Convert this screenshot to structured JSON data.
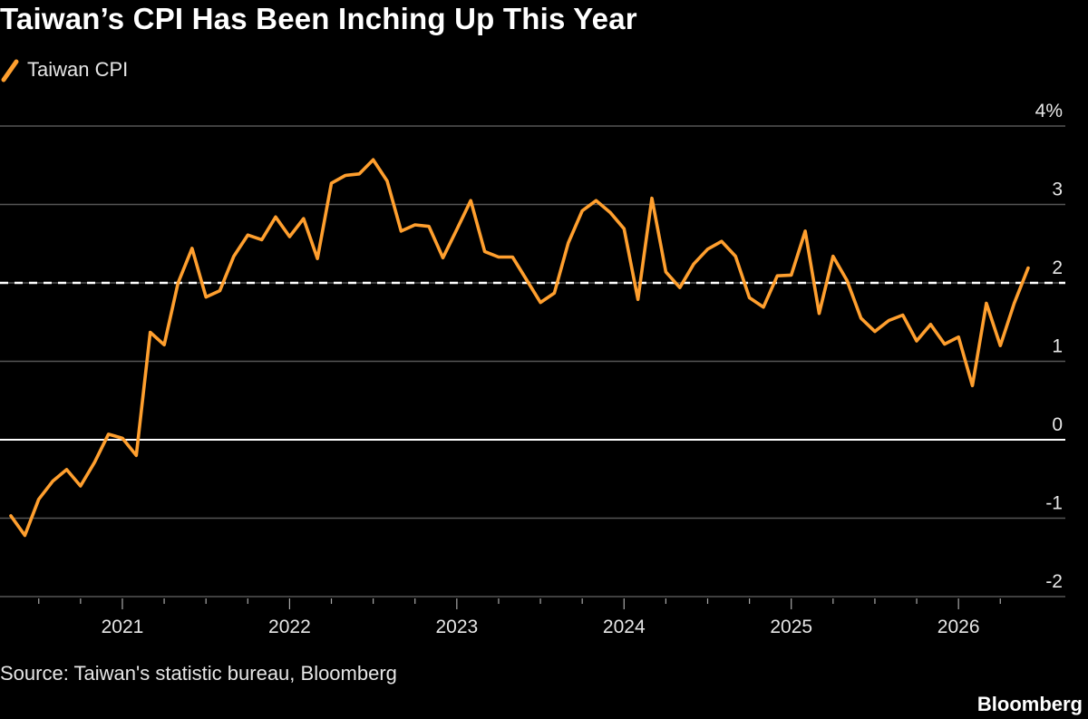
{
  "title": "Taiwan’s CPI Has Been Inching Up This Year",
  "source": "Source: Taiwan's statistic bureau, Bloomberg",
  "brand": "Bloomberg",
  "colors": {
    "background": "#000000",
    "series": "#ff9f2e",
    "grid": "#555555",
    "zero_line": "#ffffff",
    "reference_line": "#ffffff"
  },
  "chart_data": {
    "type": "line",
    "title": "Taiwan’s CPI Has Been Inching Up This Year",
    "xlabel": "",
    "ylabel": "",
    "y_unit": "%",
    "ylim": [
      -2,
      4
    ],
    "yticks": [
      -2,
      -1,
      0,
      1,
      2,
      3,
      4
    ],
    "ytick_labels": [
      "-2",
      "-1",
      "0",
      "1",
      "2",
      "3",
      "4%"
    ],
    "xticks": [
      "2021",
      "2022",
      "2023",
      "2024",
      "2025",
      "2026"
    ],
    "x_range": [
      "2020-05",
      "2026-06"
    ],
    "reference_line": {
      "y": 2,
      "style": "dashed"
    },
    "grid": true,
    "legend": {
      "position": "top-left",
      "entries": [
        "Taiwan CPI"
      ]
    },
    "series": [
      {
        "name": "Taiwan CPI",
        "x": [
          "2020-05",
          "2020-06",
          "2020-07",
          "2020-08",
          "2020-09",
          "2020-10",
          "2020-11",
          "2020-12",
          "2021-01",
          "2021-02",
          "2021-03",
          "2021-04",
          "2021-05",
          "2021-06",
          "2021-07",
          "2021-08",
          "2021-09",
          "2021-10",
          "2021-11",
          "2021-12",
          "2022-01",
          "2022-02",
          "2022-03",
          "2022-04",
          "2022-05",
          "2022-06",
          "2022-07",
          "2022-08",
          "2022-09",
          "2022-10",
          "2022-11",
          "2022-12",
          "2023-01",
          "2023-02",
          "2023-03",
          "2023-04",
          "2023-05",
          "2023-06",
          "2023-07",
          "2023-08",
          "2023-09",
          "2023-10",
          "2023-11",
          "2023-12",
          "2024-01",
          "2024-02",
          "2024-03",
          "2024-04",
          "2024-05",
          "2024-06",
          "2024-07",
          "2024-08",
          "2024-09",
          "2024-10",
          "2024-11",
          "2024-12",
          "2025-01",
          "2025-02",
          "2025-03",
          "2025-04",
          "2025-05",
          "2025-06",
          "2025-07",
          "2025-08",
          "2025-09",
          "2025-10",
          "2025-11",
          "2025-12",
          "2026-01",
          "2026-02",
          "2026-03",
          "2026-04",
          "2026-05",
          "2026-06"
        ],
        "y": [
          -0.97,
          -1.22,
          -0.76,
          -0.53,
          -0.38,
          -0.59,
          -0.29,
          0.07,
          0.02,
          -0.2,
          1.37,
          1.21,
          2.0,
          2.44,
          1.82,
          1.9,
          2.34,
          2.61,
          2.55,
          2.84,
          2.59,
          2.82,
          2.31,
          3.27,
          3.37,
          3.39,
          3.57,
          3.3,
          2.66,
          2.74,
          2.72,
          2.32,
          2.68,
          3.05,
          2.4,
          2.33,
          2.33,
          2.04,
          1.75,
          1.87,
          2.51,
          2.92,
          3.05,
          2.9,
          2.69,
          1.79,
          3.08,
          2.14,
          1.94,
          2.24,
          2.43,
          2.53,
          2.34,
          1.81,
          1.69,
          2.09,
          2.1,
          2.66,
          1.61,
          2.34,
          2.03,
          1.55,
          1.38,
          1.52,
          1.59,
          1.26,
          1.47,
          1.22,
          1.31,
          0.69,
          1.74,
          1.2,
          1.74,
          2.19
        ]
      }
    ]
  }
}
